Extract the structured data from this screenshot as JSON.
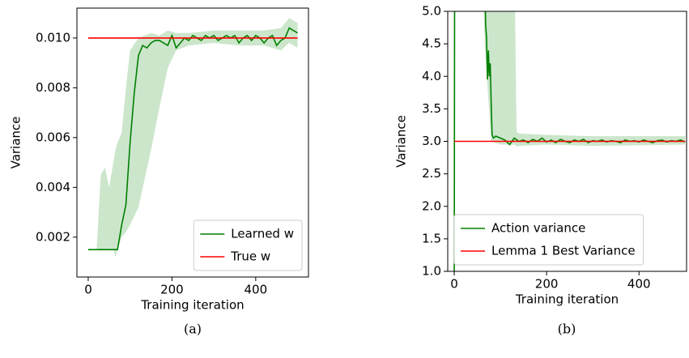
{
  "chart_data": [
    {
      "type": "line",
      "xlabel": "Training iteration",
      "ylabel": "Variance",
      "caption": "(a)",
      "xlim": [
        -27,
        526
      ],
      "ylim": [
        0.0004,
        0.0112
      ],
      "xticks": [
        0,
        200,
        400
      ],
      "yticks": [
        0.002,
        0.004,
        0.006,
        0.008,
        {
          "value": 0.01,
          "label": "0.010"
        }
      ],
      "legend": "lower right",
      "band": {
        "color": "#008000",
        "x": [
          0,
          20,
          30,
          40,
          50,
          60,
          65,
          70,
          80,
          90,
          100,
          120,
          150,
          170,
          190,
          210,
          240,
          300,
          360,
          420,
          460,
          480,
          500
        ],
        "upper": [
          0.0015,
          0.0015,
          0.0045,
          0.0048,
          0.004,
          0.005,
          0.0055,
          0.0058,
          0.0062,
          0.008,
          0.0095,
          0.01,
          0.0102,
          0.0101,
          0.0103,
          0.0102,
          0.0102,
          0.0103,
          0.0103,
          0.0103,
          0.0104,
          0.0108,
          0.0106
        ],
        "lower": [
          0.0015,
          0.0015,
          0.0015,
          0.0015,
          0.0015,
          0.0015,
          0.0012,
          0.0015,
          0.002,
          0.0022,
          0.0025,
          0.0032,
          0.0055,
          0.0072,
          0.0088,
          0.0095,
          0.0097,
          0.0098,
          0.0097,
          0.0097,
          0.0095,
          0.0098,
          0.0096
        ]
      },
      "series": [
        {
          "name": "Learned w",
          "color": "#008000",
          "x": [
            0,
            10,
            20,
            30,
            40,
            50,
            60,
            70,
            80,
            90,
            100,
            110,
            120,
            130,
            140,
            150,
            160,
            170,
            180,
            190,
            200,
            210,
            220,
            230,
            240,
            250,
            260,
            270,
            280,
            290,
            300,
            310,
            320,
            330,
            340,
            350,
            360,
            370,
            380,
            390,
            400,
            410,
            420,
            430,
            440,
            450,
            460,
            470,
            480,
            490,
            500
          ],
          "values": [
            0.0015,
            0.0015,
            0.0015,
            0.0015,
            0.0015,
            0.0015,
            0.0015,
            0.0015,
            0.0025,
            0.0033,
            0.0058,
            0.0078,
            0.0093,
            0.0097,
            0.0096,
            0.0098,
            0.0099,
            0.0099,
            0.0098,
            0.0097,
            0.0101,
            0.0096,
            0.0098,
            0.01,
            0.0099,
            0.0101,
            0.01,
            0.0099,
            0.0101,
            0.01,
            0.0101,
            0.0099,
            0.01,
            0.0101,
            0.01,
            0.0101,
            0.0098,
            0.01,
            0.0101,
            0.0099,
            0.0101,
            0.01,
            0.0098,
            0.01,
            0.0101,
            0.0097,
            0.0099,
            0.01,
            0.0104,
            0.0103,
            0.0102
          ]
        },
        {
          "name": "True w",
          "color": "#ff0000",
          "x": [
            0,
            500
          ],
          "values": [
            0.01,
            0.01
          ]
        }
      ]
    },
    {
      "type": "line",
      "xlabel": "Training iteration",
      "ylabel": "Variance",
      "caption": "(b)",
      "xlim": [
        -14,
        503
      ],
      "ylim": [
        1.0,
        5.0
      ],
      "xticks": [
        0,
        200,
        400
      ],
      "yticks": [
        {
          "value": 1.0,
          "label": "1.0"
        },
        {
          "value": 1.5,
          "label": "1.5"
        },
        {
          "value": 2.0,
          "label": "2.0"
        },
        {
          "value": 2.5,
          "label": "2.5"
        },
        {
          "value": 3.0,
          "label": "3.0"
        },
        {
          "value": 3.5,
          "label": "3.5"
        },
        {
          "value": 4.0,
          "label": "4.0"
        },
        {
          "value": 4.5,
          "label": "4.5"
        },
        {
          "value": 5.0,
          "label": "5.0"
        }
      ],
      "legend": "lower left",
      "band": {
        "color": "#008000",
        "x": [
          60,
          66,
          80,
          100,
          130,
          135,
          140,
          200,
          300,
          400,
          500
        ],
        "upper": [
          6,
          6,
          6,
          6,
          6,
          3.15,
          3.12,
          3.1,
          3.08,
          3.08,
          3.08
        ],
        "lower": [
          6,
          4.5,
          3.0,
          2.95,
          2.95,
          2.92,
          2.93,
          2.95,
          2.93,
          2.94,
          2.95
        ]
      },
      "series": [
        {
          "name": "Action variance",
          "color": "#008000",
          "x": [
            0,
            1,
            66,
            68,
            70,
            72,
            74,
            76,
            78,
            80,
            82,
            85,
            90,
            100,
            110,
            120,
            130,
            140,
            150,
            160,
            170,
            180,
            190,
            200,
            210,
            220,
            230,
            240,
            250,
            260,
            270,
            280,
            290,
            300,
            310,
            320,
            330,
            340,
            350,
            360,
            370,
            380,
            390,
            400,
            410,
            420,
            430,
            440,
            450,
            460,
            470,
            480,
            490,
            500
          ],
          "values": [
            0,
            6,
            6,
            4.8,
            4.6,
            3.95,
            4.4,
            4.0,
            4.2,
            3.6,
            3.1,
            3.05,
            3.08,
            3.05,
            3.02,
            2.95,
            3.05,
            3.0,
            3.02,
            2.98,
            3.03,
            3.0,
            3.05,
            2.99,
            3.02,
            2.98,
            3.03,
            3.0,
            2.98,
            3.02,
            3.0,
            3.03,
            2.98,
            3.01,
            3.0,
            3.02,
            2.99,
            3.01,
            3.0,
            2.98,
            3.02,
            3.0,
            3.01,
            2.99,
            3.02,
            3.0,
            2.98,
            3.01,
            3.02,
            2.99,
            3.01,
            3.0,
            3.02,
            2.99
          ]
        },
        {
          "name": "Lemma 1 Best Variance",
          "color": "#ff0000",
          "x": [
            0,
            500
          ],
          "values": [
            3.0,
            3.0
          ]
        }
      ]
    }
  ]
}
